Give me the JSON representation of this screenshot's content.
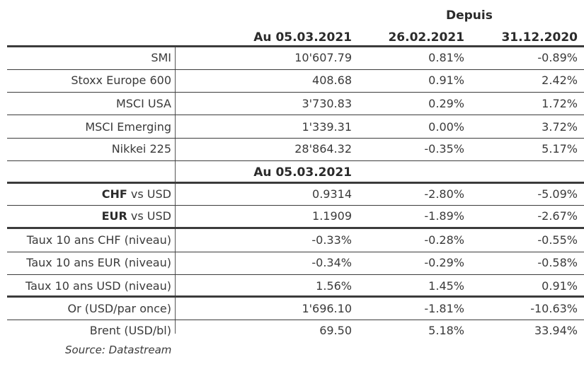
{
  "header": {
    "depuis": "Depuis",
    "col1": "Au 05.03.2021",
    "col2": "26.02.2021",
    "col3": "31.12.2020"
  },
  "indices": [
    {
      "label": "SMI",
      "v1": "10'607.79",
      "v2": "0.81%",
      "v3": "-0.89%"
    },
    {
      "label": "Stoxx Europe 600",
      "v1": "408.68",
      "v2": "0.91%",
      "v3": "2.42%"
    },
    {
      "label": "MSCI USA",
      "v1": "3'730.83",
      "v2": "0.29%",
      "v3": "1.72%"
    },
    {
      "label": "MSCI Emerging",
      "v1": "1'339.31",
      "v2": "0.00%",
      "v3": "3.72%"
    },
    {
      "label": "Nikkei 225",
      "v1": "28'864.32",
      "v2": "-0.35%",
      "v3": "5.17%"
    }
  ],
  "subheader": "Au 05.03.2021",
  "fx": [
    {
      "cur": "CHF",
      "suffix": " vs USD",
      "v1": "0.9314",
      "v2": "-2.80%",
      "v3": "-5.09%"
    },
    {
      "cur": "EUR",
      "suffix": " vs USD",
      "v1": "1.1909",
      "v2": "-1.89%",
      "v3": "-2.67%"
    }
  ],
  "rates": [
    {
      "label": "Taux 10 ans CHF (niveau)",
      "v1": "-0.33%",
      "v2": "-0.28%",
      "v3": "-0.55%"
    },
    {
      "label": "Taux 10 ans EUR (niveau)",
      "v1": "-0.34%",
      "v2": "-0.29%",
      "v3": "-0.58%"
    },
    {
      "label": "Taux 10 ans USD (niveau)",
      "v1": "1.56%",
      "v2": "1.45%",
      "v3": "0.91%"
    }
  ],
  "commodities": [
    {
      "label": "Or (USD/par once)",
      "v1": "1'696.10",
      "v2": "-1.81%",
      "v3": "-10.63%"
    },
    {
      "label": "Brent (USD/bl)",
      "v1": "69.50",
      "v2": "5.18%",
      "v3": "33.94%"
    }
  ],
  "source": "Source: Datastream"
}
